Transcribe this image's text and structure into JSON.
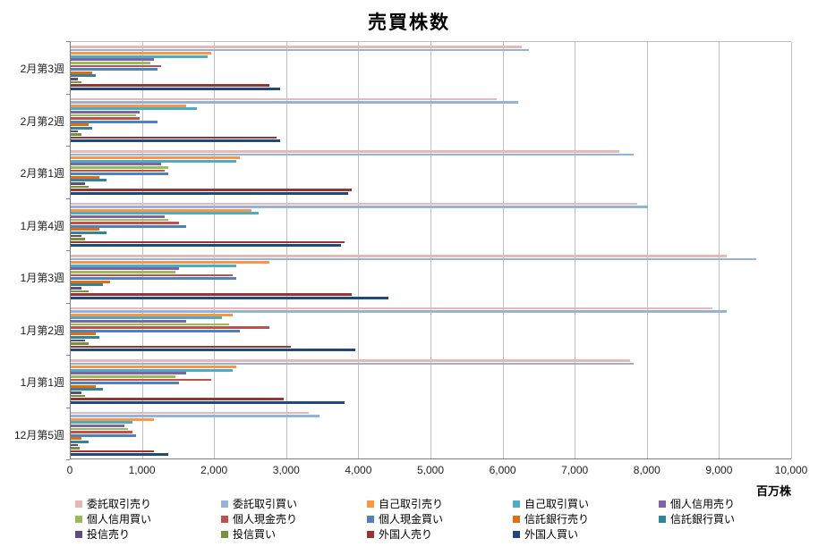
{
  "chart_data": {
    "type": "bar",
    "orientation": "horizontal",
    "title": "売買株数",
    "unit_label": "百万株",
    "legend_position": "bottom",
    "grid": true,
    "xlim": [
      0,
      10000
    ],
    "x_tick_step": 1000,
    "x_tick_labels": [
      "0",
      "1,000",
      "2,000",
      "3,000",
      "4,000",
      "5,000",
      "6,000",
      "7,000",
      "8,000",
      "9,000",
      "10,000"
    ],
    "categories_order": "top-to-bottom",
    "categories": [
      "2月第3週",
      "2月第2週",
      "2月第1週",
      "1月第4週",
      "1月第3週",
      "1月第2週",
      "1月第1週",
      "12月第5週"
    ],
    "series": [
      {
        "name": "委託取引売り",
        "color": "#E6B9B8",
        "values": [
          6250,
          5900,
          7600,
          7850,
          9100,
          8900,
          7750,
          3300
        ]
      },
      {
        "name": "委託取引買い",
        "color": "#95B3D7",
        "values": [
          6350,
          6200,
          7800,
          8000,
          9500,
          9100,
          7800,
          3450
        ]
      },
      {
        "name": "自己取引売り",
        "color": "#F79646",
        "values": [
          1950,
          1600,
          2350,
          2500,
          2750,
          2250,
          2300,
          1150
        ]
      },
      {
        "name": "自己取引買い",
        "color": "#4BACC6",
        "values": [
          1900,
          1750,
          2300,
          2600,
          2300,
          2100,
          2250,
          850
        ]
      },
      {
        "name": "個人信用売り",
        "color": "#8064A2",
        "values": [
          1150,
          950,
          1250,
          1300,
          1500,
          1600,
          1600,
          750
        ]
      },
      {
        "name": "個人信用買い",
        "color": "#9BBB59",
        "values": [
          1100,
          900,
          1350,
          1350,
          1450,
          2200,
          1450,
          800
        ]
      },
      {
        "name": "個人現金売り",
        "color": "#C0504D",
        "values": [
          1250,
          950,
          1300,
          1500,
          2250,
          2750,
          1950,
          850
        ]
      },
      {
        "name": "個人現金買い",
        "color": "#4F81BD",
        "values": [
          1200,
          1200,
          1350,
          1600,
          2300,
          2350,
          1500,
          900
        ]
      },
      {
        "name": "信託銀行売り",
        "color": "#E46C0A",
        "values": [
          300,
          250,
          400,
          400,
          550,
          350,
          350,
          150
        ]
      },
      {
        "name": "信託銀行買い",
        "color": "#31859B",
        "values": [
          350,
          300,
          500,
          500,
          450,
          400,
          450,
          250
        ]
      },
      {
        "name": "投信売り",
        "color": "#604A7B",
        "values": [
          100,
          100,
          200,
          150,
          150,
          200,
          150,
          100
        ]
      },
      {
        "name": "投信買い",
        "color": "#76923C",
        "values": [
          150,
          150,
          250,
          200,
          250,
          250,
          200,
          120
        ]
      },
      {
        "name": "外国人売り",
        "color": "#943634",
        "values": [
          2750,
          2850,
          3900,
          3800,
          3900,
          3050,
          2950,
          1150
        ]
      },
      {
        "name": "外国人買い",
        "color": "#1F497D",
        "values": [
          2900,
          2900,
          3850,
          3750,
          4400,
          3950,
          3800,
          1350
        ]
      }
    ]
  }
}
